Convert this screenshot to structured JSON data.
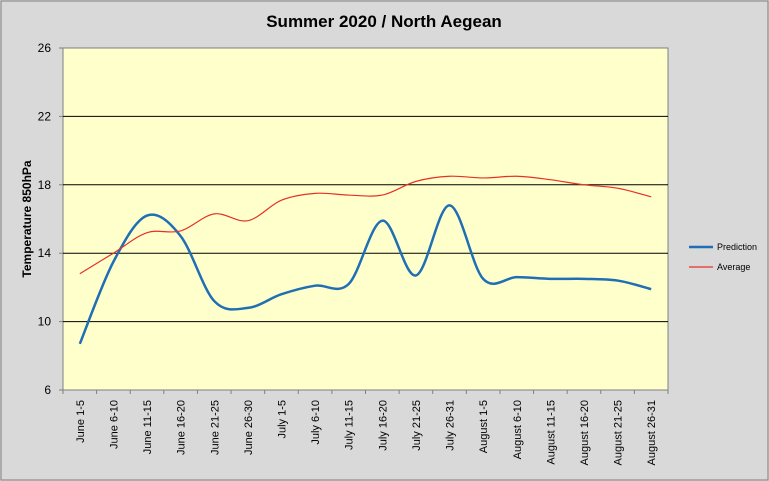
{
  "chart_data": {
    "type": "line",
    "title": "Summer 2020 / North Aegean",
    "xlabel": "",
    "ylabel": "Temperature 850hPa",
    "ylim": [
      6,
      26
    ],
    "yticks": [
      6,
      10,
      14,
      18,
      22,
      26
    ],
    "grid": true,
    "legend_position": "right",
    "categories": [
      "June 1-5",
      "June 6-10",
      "June 11-15",
      "June 16-20",
      "June 21-25",
      "June 26-30",
      "July 1-5",
      "July 6-10",
      "July 11-15",
      "July 16-20",
      "July 21-25",
      "July 26-31",
      "August 1-5",
      "August 6-10",
      "August 11-15",
      "August 16-20",
      "August 21-25",
      "August 26-31"
    ],
    "series": [
      {
        "name": "Prediction",
        "color": "#1f6fb4",
        "values": [
          8.7,
          13.5,
          16.2,
          15.0,
          11.2,
          10.8,
          11.6,
          12.1,
          12.2,
          15.9,
          12.7,
          16.8,
          12.5,
          12.6,
          12.5,
          12.5,
          12.4,
          11.9
        ]
      },
      {
        "name": "Average",
        "color": "#e8302a",
        "values": [
          12.8,
          14.0,
          15.2,
          15.3,
          16.3,
          15.9,
          17.1,
          17.5,
          17.4,
          17.4,
          18.2,
          18.5,
          18.4,
          18.5,
          18.3,
          18.0,
          17.8,
          17.3
        ]
      }
    ]
  },
  "colors": {
    "page_background": "#d9d9d9",
    "plot_background": "#ffffcc",
    "gridline": "#000000"
  }
}
